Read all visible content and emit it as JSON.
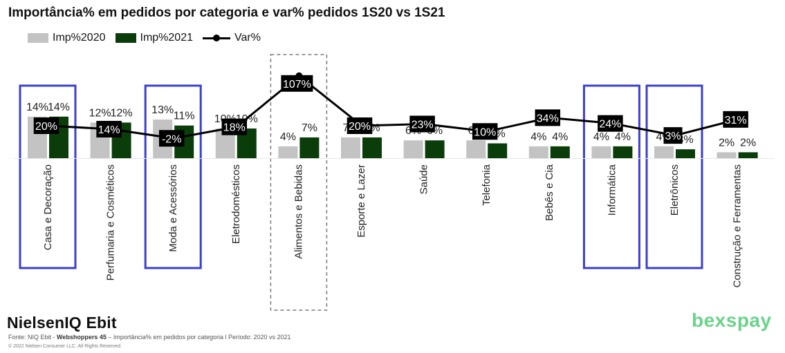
{
  "title": "Importância% em pedidos por categoria e var% pedidos 1S20 vs 1S21",
  "legend": {
    "imp2020": "Imp%2020",
    "imp2021": "Imp%2021",
    "var": "Var%"
  },
  "colors": {
    "imp2020": "#c3c3c3",
    "imp2021": "#0b3d0b",
    "var_line": "#000000",
    "highlight_box": "#3a3fd0",
    "dashed_box": "#7a7a7a",
    "brand_logo": "#6ad38a"
  },
  "chart_data": {
    "type": "bar",
    "categories": [
      "Casa e Decoração",
      "Perfumaria e Cosméticos",
      "Moda e Acessórios",
      "Eletrodomésticos",
      "Alimentos e Bebidas",
      "Esporte e Lazer",
      "Saúde",
      "Telefonia",
      "Bebês e Cia",
      "Informática",
      "Eletrônicos",
      "Construção e Ferramentas"
    ],
    "series": [
      {
        "name": "Imp%2020",
        "type": "bar",
        "values": [
          14,
          12,
          13,
          10,
          4,
          7,
          6,
          6,
          4,
          4,
          4,
          2
        ],
        "labels": [
          "14%",
          "12%",
          "13%",
          "10%",
          "4%",
          "7%",
          "6%",
          "6%",
          "4%",
          "4%",
          "4%",
          "2%"
        ]
      },
      {
        "name": "Imp%2021",
        "type": "bar",
        "values": [
          14,
          12,
          11,
          10,
          7,
          7,
          6,
          5,
          4,
          4,
          3,
          2
        ],
        "labels": [
          "14%",
          "12%",
          "11%",
          "10%",
          "7%",
          "7%",
          "6%",
          "5%",
          "4%",
          "4%",
          "3%",
          "2%"
        ]
      },
      {
        "name": "Var%",
        "type": "line",
        "values": [
          20,
          14,
          -2,
          18,
          107,
          20,
          23,
          10,
          34,
          24,
          3,
          31
        ],
        "labels": [
          "20%",
          "14%",
          "-2%",
          "18%",
          "107%",
          "20%",
          "23%",
          "10%",
          "34%",
          "24%",
          "3%",
          "31%"
        ]
      }
    ],
    "highlighted_categories": [
      "Casa e Decoração",
      "Moda e Acessórios",
      "Informática",
      "Eletrônicos"
    ],
    "dashed_highlight": [
      "Alimentos e Bebidas"
    ],
    "legend_position": "top-left",
    "grid": false
  },
  "footer": {
    "brand": "NielsenIQ Ebit",
    "source_prefix": "Fonte: NIQ Ebit - ",
    "source_bold": "Webshoppers 45",
    "source_suffix": " – Importância% em pedidos por categoria l Período: 2020 vs 2021",
    "copyright": "© 2022 Nielsen Consumer LLC. All Rights Reserved.",
    "logo": "bexspay"
  }
}
